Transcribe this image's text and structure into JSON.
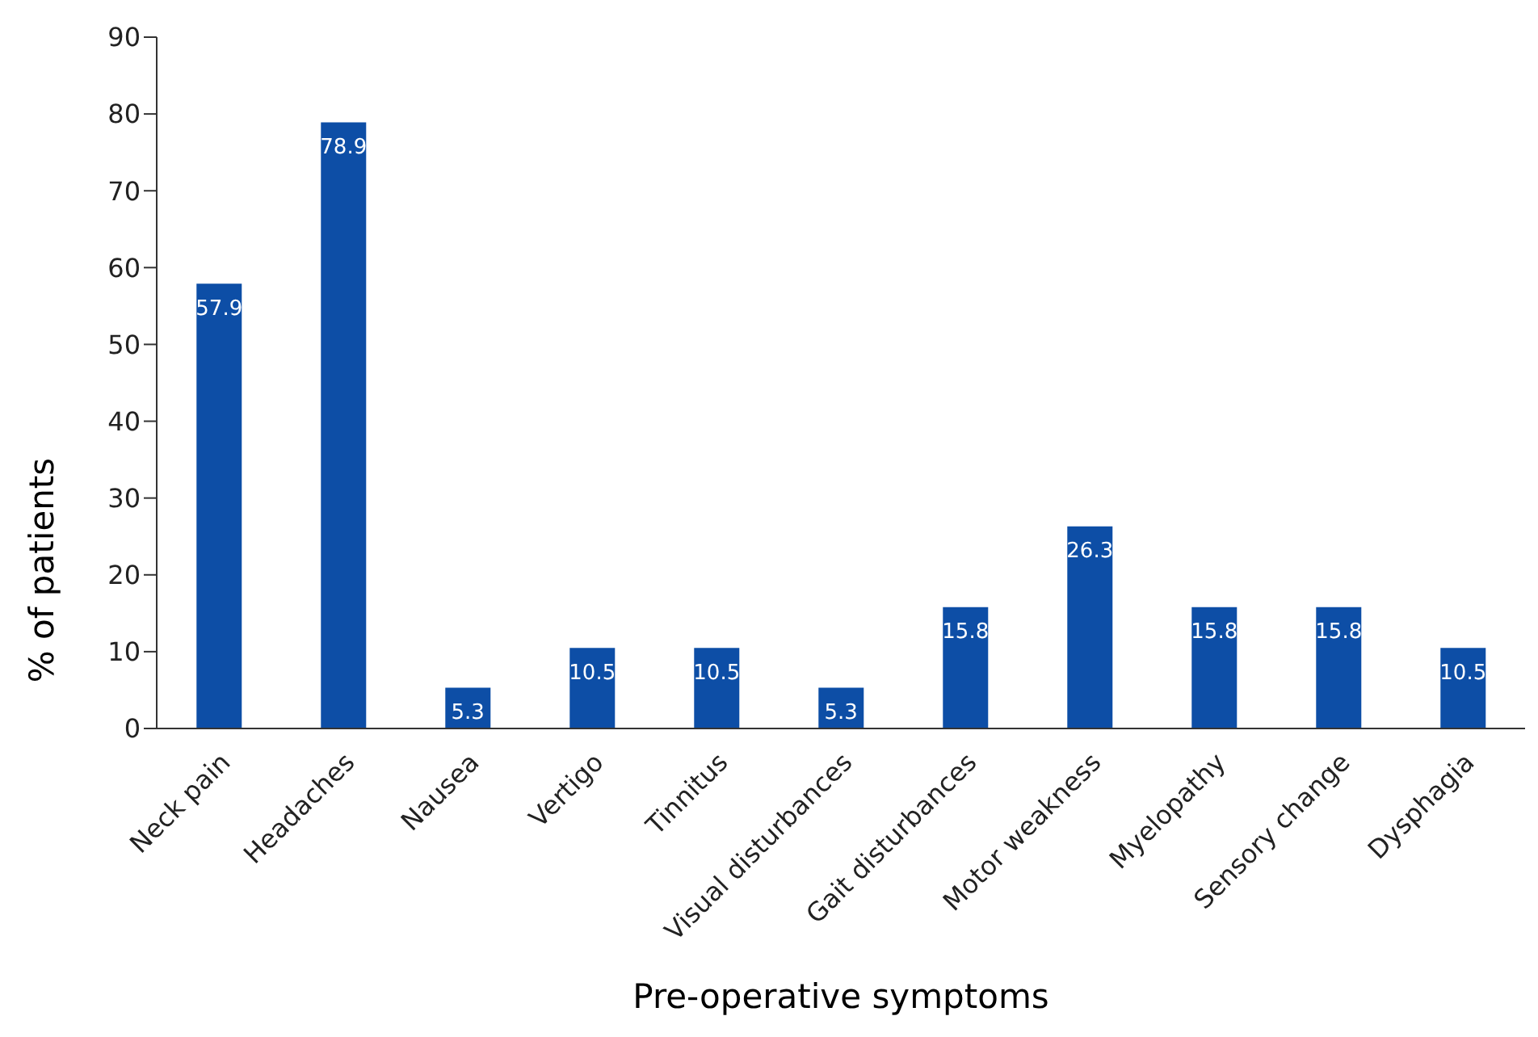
{
  "chart_data": {
    "type": "bar",
    "xlabel": "Pre-operative symptoms",
    "ylabel": "% of patients",
    "categories": [
      "Neck pain",
      "Headaches",
      "Nausea",
      "Vertigo",
      "Tinnitus",
      "Visual disturbances",
      "Gait disturbances",
      "Motor weakness",
      "Myelopathy",
      "Sensory change",
      "Dysphagia"
    ],
    "values": [
      57.9,
      78.9,
      5.3,
      10.5,
      10.5,
      5.3,
      15.8,
      26.3,
      15.8,
      15.8,
      10.5
    ],
    "color": "#0d4ea6",
    "ylim": [
      0,
      90
    ],
    "yticks": [
      0,
      10,
      20,
      30,
      40,
      50,
      60,
      70,
      80,
      90
    ],
    "grid": false,
    "data_labels": true,
    "legend": false
  }
}
